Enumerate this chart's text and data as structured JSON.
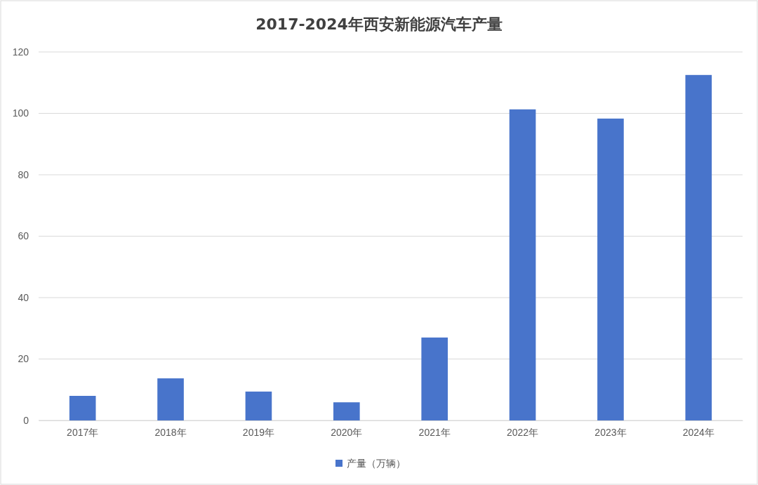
{
  "chart_data": {
    "type": "bar",
    "title": "2017-2024年西安新能源汽车产量",
    "categories": [
      "2017年",
      "2018年",
      "2019年",
      "2020年",
      "2021年",
      "2022年",
      "2023年",
      "2024年"
    ],
    "series": [
      {
        "name": "产量（万辆）",
        "color": "#4874cb",
        "values": [
          8.0,
          13.7,
          9.4,
          5.9,
          27.0,
          101.3,
          98.3,
          112.5
        ]
      }
    ],
    "ylim": [
      0,
      120
    ],
    "yticks": [
      0,
      20,
      40,
      60,
      80,
      100,
      120
    ],
    "grid": "y",
    "legend": "bottom"
  }
}
